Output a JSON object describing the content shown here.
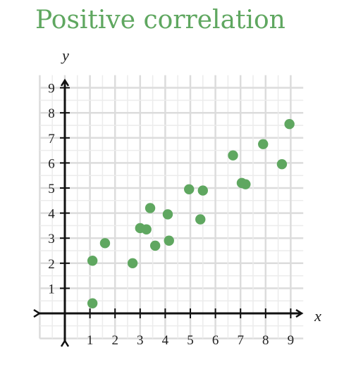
{
  "chart_data": {
    "type": "scatter",
    "title": "Positive correlation",
    "xlabel": "x",
    "ylabel": "y",
    "xlim": [
      0,
      9
    ],
    "ylim": [
      0,
      9
    ],
    "xticks": [
      "1",
      "2",
      "3",
      "4",
      "5",
      "6",
      "7",
      "8",
      "9"
    ],
    "yticks": [
      "1",
      "2",
      "3",
      "4",
      "5",
      "6",
      "7",
      "8",
      "9"
    ],
    "grid": true,
    "point_color": "#5fa760",
    "title_color": "#5fa760",
    "points": [
      {
        "x": 1.1,
        "y": 0.4
      },
      {
        "x": 1.1,
        "y": 2.1
      },
      {
        "x": 1.6,
        "y": 2.8
      },
      {
        "x": 2.7,
        "y": 2.0
      },
      {
        "x": 3.0,
        "y": 3.4
      },
      {
        "x": 3.25,
        "y": 3.35
      },
      {
        "x": 3.4,
        "y": 4.2
      },
      {
        "x": 3.6,
        "y": 2.7
      },
      {
        "x": 4.1,
        "y": 3.95
      },
      {
        "x": 4.15,
        "y": 2.9
      },
      {
        "x": 4.95,
        "y": 4.95
      },
      {
        "x": 5.4,
        "y": 3.75
      },
      {
        "x": 5.5,
        "y": 4.9
      },
      {
        "x": 6.7,
        "y": 6.3
      },
      {
        "x": 7.05,
        "y": 5.2
      },
      {
        "x": 7.2,
        "y": 5.15
      },
      {
        "x": 7.9,
        "y": 6.75
      },
      {
        "x": 8.65,
        "y": 5.95
      },
      {
        "x": 8.95,
        "y": 7.55
      }
    ]
  }
}
